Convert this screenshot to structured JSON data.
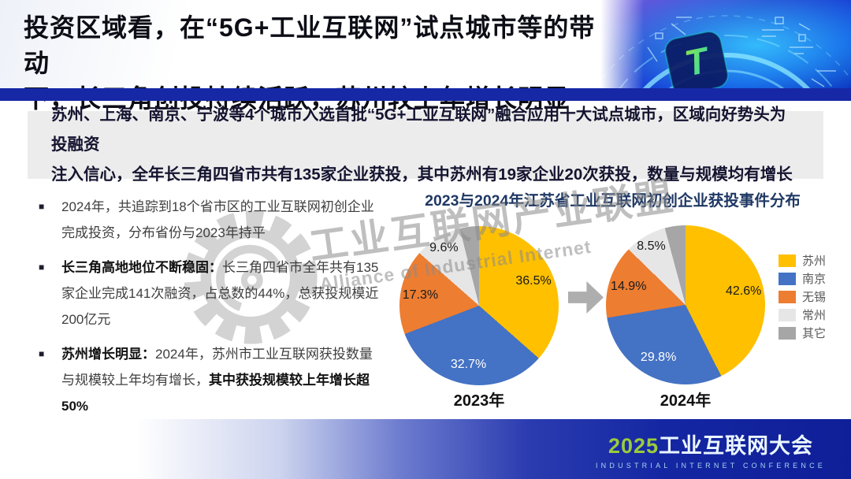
{
  "header": {
    "title_line1": "投资区域看，在“5G+工业互联网”试点城市等的带动",
    "title_line2": "下，长三角创投持续活跃，苏州较上年增长明显",
    "tech_logo_letter": "T",
    "divider_color": "#1728a6"
  },
  "banner": {
    "line1": "苏州、上海、南京、宁波等4个城市入选首批“5G+工业互联网”融合应用十大试点城市，区域向好势头为投融资",
    "line2": "注入信心，全年长三角四省市共有135家企业获投，其中苏州有19家企业20次获投，数量与规模均有增长"
  },
  "bullets": [
    {
      "segments": [
        {
          "t": "2024年，共追踪到18个省市区的工业互联网初创企业完成投资，分布省份与2023年持平",
          "b": false
        }
      ]
    },
    {
      "segments": [
        {
          "t": "长三角高地地位不断稳固：",
          "b": true
        },
        {
          "t": "长三角四省市全年共有135家企业完成141次融资，占总数的44%，总获投规模近200亿元",
          "b": false
        }
      ]
    },
    {
      "segments": [
        {
          "t": "苏州增长明显：",
          "b": true
        },
        {
          "t": "2024年，苏州市工业互联网获投数量与规模较上年均有增长，",
          "b": false
        },
        {
          "t": "其中获投规模较上年增长超50%",
          "b": true
        }
      ]
    }
  ],
  "chart_data": {
    "type": "pie",
    "title": "2023与2024年江苏省工业互联网初创企业获投事件分布",
    "legend_position": "right",
    "legend": [
      "苏州",
      "南京",
      "无锡",
      "常州",
      "其它"
    ],
    "colors": {
      "苏州": "#FFC000",
      "南京": "#4472C4",
      "无锡": "#ED7D31",
      "常州": "#E7E6E6",
      "其它": "#A6A6A6"
    },
    "label_text_colors": {
      "苏州": "#1a1a1a",
      "南京": "#ffffff",
      "无锡": "#1a1a1a",
      "常州": "#1a1a1a"
    },
    "charts": [
      {
        "label": "2023年",
        "slices": [
          {
            "name": "苏州",
            "value": 36.5
          },
          {
            "name": "南京",
            "value": 32.7
          },
          {
            "name": "无锡",
            "value": 17.3
          },
          {
            "name": "常州",
            "value": 9.6,
            "label_r": 0.85
          },
          {
            "name": "其它",
            "value": 3.9,
            "show_label": false
          }
        ]
      },
      {
        "label": "2024年",
        "slices": [
          {
            "name": "苏州",
            "value": 42.6
          },
          {
            "name": "南京",
            "value": 29.8
          },
          {
            "name": "无锡",
            "value": 14.9
          },
          {
            "name": "常州",
            "value": 8.5,
            "label_r": 0.85
          },
          {
            "name": "其它",
            "value": 4.2,
            "show_label": false
          }
        ]
      }
    ]
  },
  "watermark": {
    "line1": "工业互联网产业联盟",
    "line2": "Alliance of Industrial Internet"
  },
  "footer": {
    "logo_year": "2025",
    "logo_title": "工业互联网大会",
    "logo_subtitle": "INDUSTRIAL INTERNET CONFERENCE",
    "band_color": "#1426a2",
    "logo_year_color": "#9bcb3c"
  }
}
